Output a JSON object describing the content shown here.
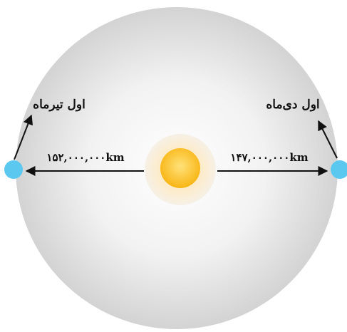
{
  "labels": {
    "left_date": "اول تیرماه",
    "right_date": "اول دی‌ماه",
    "left_distance": "۱۵۲,۰۰۰,۰۰۰km",
    "right_distance": "۱۴۷,۰۰۰,۰۰۰km"
  },
  "colors": {
    "orbit_outer": "#d6d6d6",
    "orbit_inner": "#ffffff",
    "sun_core": "#fbc52b",
    "sun_glow": "#fde9b8",
    "earth": "#5bc8f0",
    "arrow": "#111111"
  },
  "icons": {
    "sun": "sun-icon",
    "earth_left": "earth-aphelion-icon",
    "earth_right": "earth-perihelion-icon"
  }
}
